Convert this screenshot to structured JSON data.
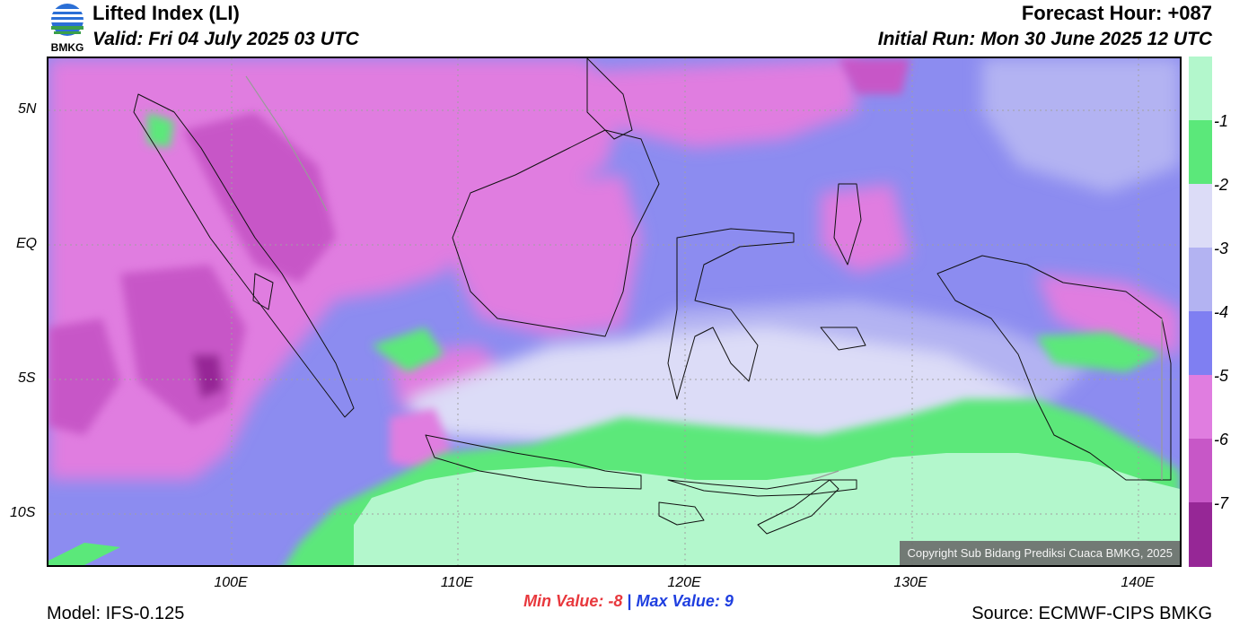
{
  "header": {
    "title": "Lifted Index (LI)",
    "valid": "Valid: Fri 04 July 2025 03 UTC",
    "forecast_hour": "Forecast Hour: +087",
    "initial_run": "Initial Run: Mon 30 June 2025 12 UTC",
    "logo_text": "BMKG"
  },
  "map": {
    "lat_labels": [
      "5N",
      "EQ",
      "5S",
      "10S"
    ],
    "lon_labels": [
      "100E",
      "110E",
      "120E",
      "130E",
      "140E"
    ],
    "copyright": "Copyright Sub Bidang Prediksi Cuaca BMKG, 2025"
  },
  "legend": {
    "labels": [
      "-1",
      "-2",
      "-3",
      "-4",
      "-5",
      "-6",
      "-7"
    ],
    "colors": [
      "#b3f7cc",
      "#5be87a",
      "#dcdcf7",
      "#b3b3f2",
      "#7f7ff2",
      "#e07de0",
      "#c757c7",
      "#962796"
    ]
  },
  "footer": {
    "min_label": "Min Value:",
    "min_value": "-8",
    "separator": "|",
    "max_label": "Max Value:",
    "max_value": "9",
    "model": "Model: IFS-0.125",
    "source": "Source: ECMWF-CIPS BMKG"
  }
}
